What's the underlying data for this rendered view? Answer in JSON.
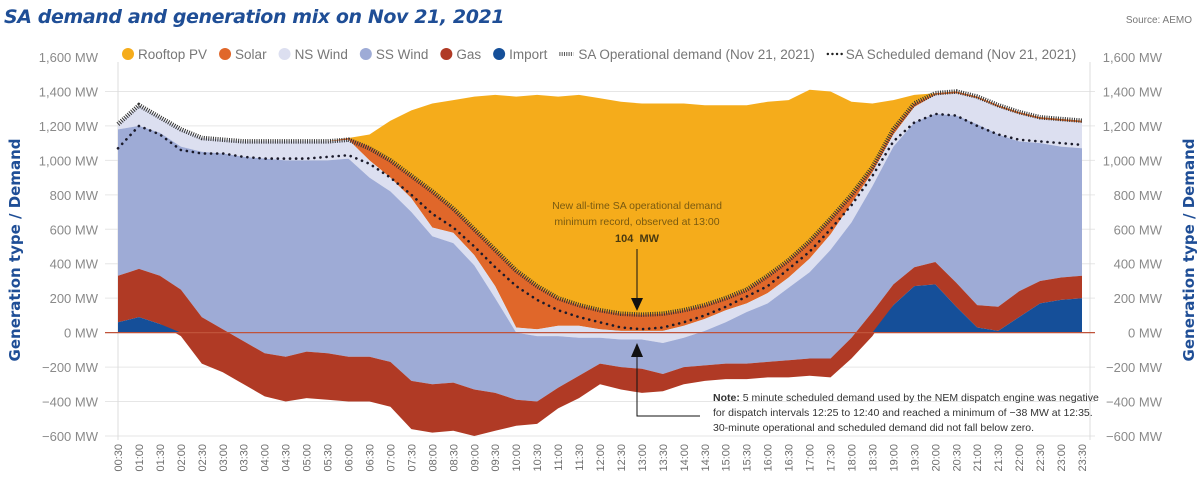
{
  "title": "SA demand and generation mix on Nov 21, 2021",
  "source": "Source: AEMO",
  "chart_data": {
    "type": "area",
    "title": "SA demand and generation mix on Nov 21, 2021",
    "ylabel": "Generation type / Demand",
    "ylabel_right": "Generation type / Demand",
    "ylim": [
      -600,
      1600
    ],
    "yticks": [
      1600,
      1400,
      1200,
      1000,
      800,
      600,
      400,
      200,
      0,
      -200,
      -400,
      -600
    ],
    "ytick_labels": [
      "1,600 MW",
      "1,400 MW",
      "1,200 MW",
      "1,000 MW",
      "800 MW",
      "600 MW",
      "400 MW",
      "200 MW",
      "0 MW",
      "−200 MW",
      "−400 MW",
      "−600 MW"
    ],
    "grid": true,
    "legend_position": "top",
    "x": [
      "00:30",
      "01:00",
      "01:30",
      "02:00",
      "02:30",
      "03:00",
      "03:30",
      "04:00",
      "04:30",
      "05:00",
      "05:30",
      "06:00",
      "06:30",
      "07:00",
      "07:30",
      "08:00",
      "08:30",
      "09:00",
      "09:30",
      "10:00",
      "10:30",
      "11:00",
      "11:30",
      "12:00",
      "12:30",
      "13:00",
      "13:30",
      "14:00",
      "14:30",
      "15:00",
      "15:30",
      "16:00",
      "16:30",
      "17:00",
      "17:30",
      "18:00",
      "18:30",
      "19:00",
      "19:30",
      "20:00",
      "20:30",
      "21:00",
      "21:30",
      "22:00",
      "22:30",
      "23:00",
      "23:30"
    ],
    "boundaries_note": "Stacked layer boundaries in MW per interval",
    "import_top": [
      60,
      90,
      50,
      0,
      0,
      0,
      0,
      0,
      0,
      0,
      0,
      0,
      0,
      0,
      0,
      0,
      0,
      0,
      0,
      0,
      0,
      0,
      0,
      0,
      0,
      0,
      0,
      0,
      0,
      0,
      0,
      0,
      0,
      0,
      0,
      0,
      0,
      160,
      270,
      280,
      150,
      30,
      10,
      90,
      170,
      190,
      200
    ],
    "gas_bottom": [
      60,
      90,
      50,
      -20,
      -180,
      -230,
      -300,
      -370,
      -400,
      -380,
      -390,
      -400,
      -400,
      -430,
      -560,
      -580,
      -570,
      -600,
      -570,
      -540,
      -530,
      -440,
      -380,
      -300,
      -330,
      -350,
      -340,
      -300,
      -280,
      -270,
      -270,
      -260,
      -260,
      -250,
      -260,
      -150,
      -20,
      160,
      270,
      280,
      150,
      30,
      10,
      90,
      170,
      190,
      200
    ],
    "gas_top": [
      330,
      370,
      330,
      250,
      90,
      20,
      -50,
      -120,
      -140,
      -110,
      -120,
      -140,
      -140,
      -170,
      -280,
      -300,
      -290,
      -330,
      -350,
      -390,
      -400,
      -320,
      -250,
      -180,
      -200,
      -210,
      -240,
      -200,
      -190,
      -180,
      -180,
      -170,
      -160,
      -150,
      -150,
      -30,
      120,
      280,
      380,
      410,
      290,
      160,
      150,
      240,
      300,
      320,
      330
    ],
    "ss_wind_top": [
      1180,
      1200,
      1160,
      1080,
      1050,
      1040,
      1020,
      1010,
      1000,
      1000,
      1000,
      1010,
      900,
      820,
      700,
      560,
      520,
      390,
      200,
      0,
      -20,
      -20,
      -30,
      -30,
      -40,
      -40,
      -60,
      -30,
      10,
      60,
      120,
      170,
      260,
      350,
      480,
      640,
      850,
      1080,
      1220,
      1270,
      1260,
      1210,
      1150,
      1110,
      1100,
      1080,
      1070
    ],
    "ns_wind_top": [
      1210,
      1320,
      1250,
      1180,
      1130,
      1120,
      1110,
      1110,
      1110,
      1110,
      1110,
      1120,
      1000,
      900,
      780,
      610,
      580,
      450,
      270,
      30,
      20,
      40,
      40,
      20,
      10,
      10,
      10,
      40,
      80,
      130,
      170,
      230,
      320,
      430,
      570,
      750,
      930,
      1150,
      1310,
      1380,
      1390,
      1360,
      1310,
      1270,
      1240,
      1230,
      1220
    ],
    "solar_top": [
      1210,
      1320,
      1250,
      1180,
      1130,
      1120,
      1110,
      1110,
      1110,
      1110,
      1110,
      1130,
      1080,
      1000,
      910,
      820,
      720,
      600,
      480,
      360,
      270,
      200,
      160,
      130,
      110,
      104,
      110,
      130,
      160,
      200,
      250,
      330,
      420,
      530,
      660,
      800,
      960,
      1180,
      1330,
      1390,
      1400,
      1370,
      1320,
      1280,
      1250,
      1240,
      1230
    ],
    "rooftop_top": [
      1210,
      1320,
      1250,
      1180,
      1130,
      1120,
      1110,
      1110,
      1110,
      1110,
      1110,
      1130,
      1150,
      1230,
      1290,
      1330,
      1350,
      1370,
      1380,
      1370,
      1380,
      1370,
      1380,
      1360,
      1340,
      1330,
      1330,
      1330,
      1320,
      1320,
      1320,
      1340,
      1350,
      1410,
      1400,
      1340,
      1330,
      1350,
      1380,
      1390,
      1400,
      1370,
      1320,
      1280,
      1250,
      1240,
      1230
    ],
    "operational_demand": [
      1210,
      1320,
      1250,
      1180,
      1130,
      1120,
      1110,
      1110,
      1110,
      1110,
      1110,
      1120,
      1070,
      1000,
      910,
      820,
      720,
      600,
      480,
      360,
      270,
      200,
      160,
      130,
      110,
      104,
      110,
      130,
      160,
      200,
      250,
      330,
      420,
      530,
      660,
      800,
      960,
      1180,
      1330,
      1390,
      1400,
      1370,
      1320,
      1280,
      1250,
      1240,
      1230
    ],
    "scheduled_demand": [
      1070,
      1200,
      1150,
      1060,
      1040,
      1040,
      1020,
      1010,
      1010,
      1010,
      1020,
      1030,
      980,
      900,
      800,
      690,
      610,
      500,
      380,
      270,
      190,
      130,
      90,
      60,
      30,
      20,
      30,
      60,
      100,
      150,
      210,
      270,
      370,
      470,
      600,
      740,
      910,
      1110,
      1220,
      1270,
      1260,
      1200,
      1150,
      1120,
      1110,
      1100,
      1090
    ],
    "series": [
      {
        "name": "Rooftop PV",
        "color": "#f5ac1b"
      },
      {
        "name": "Solar",
        "color": "#e0672a"
      },
      {
        "name": "NS Wind",
        "color": "#dcdff0"
      },
      {
        "name": "SS Wind",
        "color": "#9eabd6"
      },
      {
        "name": "Gas",
        "color": "#b03a25"
      },
      {
        "name": "Import",
        "color": "#154f99"
      },
      {
        "name": "SA Operational demand (Nov 21, 2021)",
        "style": "hatched"
      },
      {
        "name": "SA Scheduled demand (Nov 21, 2021)",
        "style": "dotted"
      }
    ],
    "annotations": {
      "record_line1": "New all-time SA operational demand",
      "record_line2": "minimum record, observed at 13:00",
      "record_value": "104  MW",
      "note_bold": "Note:",
      "note_line1": " 5 minute scheduled demand used by the NEM dispatch engine was negative",
      "note_line2": "for dispatch intervals 12:25 to 12:40 and reached a minimum of −38 MW at 12:35.",
      "note_line3": "30-minute operational and scheduled demand did not fall below zero."
    }
  }
}
